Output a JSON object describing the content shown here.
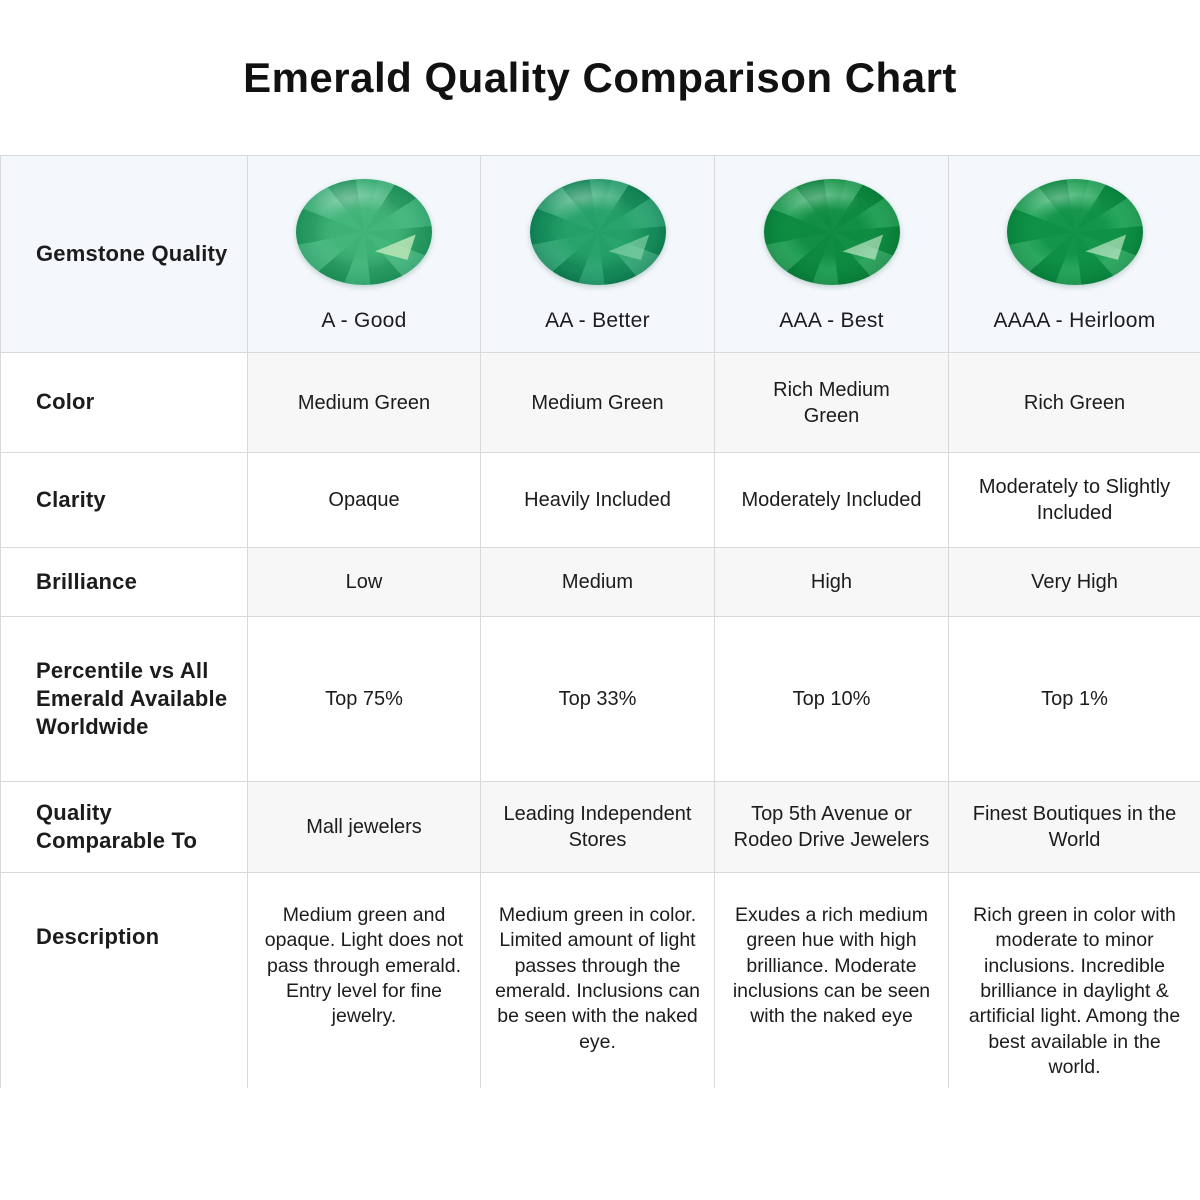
{
  "page": {
    "title": "Emerald Quality Comparison Chart"
  },
  "colors": {
    "theme": {
      "header_bg": "#f4f8fd",
      "row_alt_bg": "#f7f7f7",
      "border": "#d9d9d9",
      "text": "#1c1c1c"
    },
    "gems": [
      {
        "icon": "emerald-oval-a-good-icon",
        "palette": {
          "mid": "#45bb80",
          "body": "#2aa76a",
          "rim": "#18935b",
          "edge": "#0f7d4a",
          "table": "#3eb377",
          "facet": "#bce5b6",
          "facetAlpha": "0.85"
        }
      },
      {
        "icon": "emerald-oval-aa-better-icon",
        "palette": {
          "mid": "#2aab6e",
          "body": "#169562",
          "rim": "#0b7448",
          "edge": "#075c38",
          "table": "#23a068",
          "facet": "#9adfb4",
          "facetAlpha": "0.55"
        }
      },
      {
        "icon": "emerald-oval-aaa-best-icon",
        "palette": {
          "mid": "#14a14f",
          "body": "#0c9243",
          "rim": "#087a36",
          "edge": "#05642b",
          "table": "#0c8a3f",
          "facet": "#daf4d8",
          "facetAlpha": "0.6"
        }
      },
      {
        "icon": "emerald-oval-aaaa-heirloom-icon",
        "palette": {
          "mid": "#16a854",
          "body": "#0d9747",
          "rim": "#087d38",
          "edge": "#05672d",
          "table": "#0e9046",
          "facet": "#daf4d8",
          "facetAlpha": "0.6"
        }
      }
    ]
  },
  "table": {
    "corner_label": "Gemstone Quality",
    "row_labels": {
      "color": "Color",
      "clarity": "Clarity",
      "brilliance": "Brilliance",
      "percentile": "Percentile vs All Emerald Available Worldwide",
      "comparable": "Quality Comparable To",
      "description": "Description"
    },
    "grades": [
      {
        "name": "A - Good",
        "color": "Medium Green",
        "clarity": "Opaque",
        "brilliance": "Low",
        "percentile": "Top 75%",
        "comparable": "Mall jewelers",
        "description": "Medium green and opaque. Light does not pass through emerald. Entry level for fine jewelry."
      },
      {
        "name": "AA - Better",
        "color": "Medium Green",
        "clarity": "Heavily Included",
        "brilliance": "Medium",
        "percentile": "Top 33%",
        "comparable": "Leading Independent Stores",
        "description": "Medium green in color. Limited amount of light passes through the emerald. Inclusions can be seen with the naked eye."
      },
      {
        "name": "AAA - Best",
        "color": "Rich Medium\nGreen",
        "clarity": "Moderately Included",
        "brilliance": "High",
        "percentile": "Top 10%",
        "comparable": "Top 5th Avenue or Rodeo Drive Jewelers",
        "description": "Exudes a rich medium green hue with high brilliance. Moderate inclusions can be seen with the naked eye"
      },
      {
        "name": "AAAA - Heirloom",
        "color": "Rich Green",
        "clarity": "Moderately to Slightly Included",
        "brilliance": "Very High",
        "percentile": "Top 1%",
        "comparable": "Finest Boutiques in the World",
        "description": "Rich green in color with moderate to minor inclusions. Incredible brilliance in daylight & artificial light. Among the best available in the world."
      }
    ]
  }
}
